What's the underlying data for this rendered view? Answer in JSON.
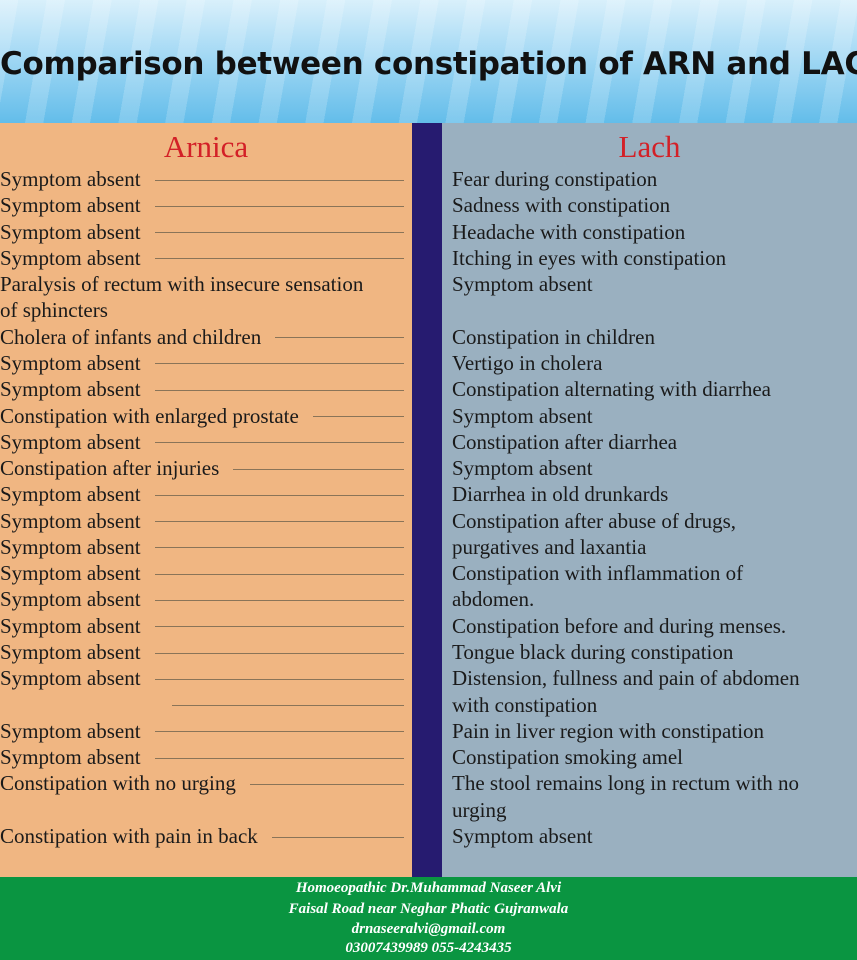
{
  "title": "Comparison between constipation of ARN and LACH",
  "left_heading": "Arnica",
  "right_heading": "Lach",
  "left_lines": [
    "Symptom absent",
    "Symptom absent",
    "Symptom absent",
    "Symptom absent",
    "Paralysis of rectum with insecure sensation",
    "of sphincters",
    "Cholera of infants and children",
    "Symptom absent",
    "Symptom absent",
    "Constipation with enlarged prostate",
    "Symptom absent",
    "Constipation after injuries",
    "Symptom absent",
    "Symptom absent",
    "Symptom absent",
    "Symptom absent",
    "Symptom absent",
    "Symptom absent",
    "Symptom absent",
    "Symptom absent",
    "",
    "Symptom absent",
    "Symptom absent",
    "Constipation with no urging",
    "",
    "Constipation with pain in back"
  ],
  "right_lines": [
    "Fear during constipation",
    "Sadness with constipation",
    "Headache with constipation",
    "Itching in eyes with constipation",
    "Symptom absent",
    "",
    "Constipation in children",
    "Vertigo  in cholera",
    "Constipation alternating with diarrhea",
    "Symptom absent",
    "Constipation after diarrhea",
    "Symptom absent",
    "Diarrhea in old drunkards",
    "Constipation after abuse of drugs,",
    "purgatives and laxantia",
    "Constipation with  inflammation of",
    "abdomen.",
    "Constipation before and during menses.",
    "Tongue black during constipation",
    "Distension, fullness and pain of abdomen",
    "with constipation",
    "Pain in liver region with constipation",
    "Constipation smoking amel",
    "The stool remains long in rectum with no",
    "urging",
    "Symptom absent"
  ],
  "footer": {
    "name": "Homoeopathic Dr.Muhammad Naseer Alvi",
    "address": "Faisal Road near Neghar Phatic Gujranwala",
    "email": "drnaseeralvi@gmail.com",
    "phones": "03007439989  055-4243435"
  }
}
